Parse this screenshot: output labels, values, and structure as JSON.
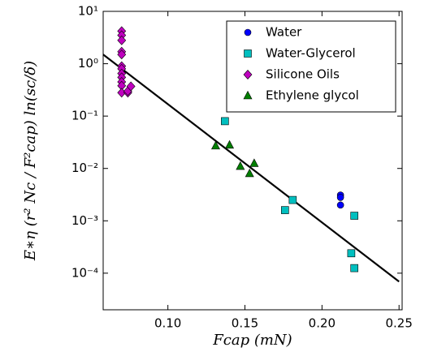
{
  "chart_data": {
    "type": "scatter",
    "x_label": "Fcap (mN)",
    "y_label": "E∗η (r² Nc / F²cap) ln(sc/δ)",
    "xlim": [
      0.058,
      0.252
    ],
    "xticks": [
      {
        "value": 0.1,
        "label": "0.10"
      },
      {
        "value": 0.15,
        "label": "0.15"
      },
      {
        "value": 0.2,
        "label": "0.20"
      },
      {
        "value": 0.25,
        "label": "0.25"
      }
    ],
    "ylim": [
      2e-05,
      10
    ],
    "yscale": "log",
    "yticks": [
      {
        "value": 10,
        "label": "10¹"
      },
      {
        "value": 1,
        "label": "10⁰"
      },
      {
        "value": 0.1,
        "label": "10⁻¹"
      },
      {
        "value": 0.01,
        "label": "10⁻²"
      },
      {
        "value": 0.001,
        "label": "10⁻³"
      },
      {
        "value": 0.0001,
        "label": "10⁻⁴"
      }
    ],
    "legend": "upper right",
    "series": [
      {
        "name": "Water",
        "color": "#0000ff",
        "marker": "circle",
        "x": [
          0.212,
          0.212,
          0.212
        ],
        "values": [
          0.0031,
          0.0028,
          0.002
        ]
      },
      {
        "name": "Water-Glycerol",
        "color": "#00bfbf",
        "marker": "square",
        "x": [
          0.137,
          0.176,
          0.181,
          0.221,
          0.219,
          0.221
        ],
        "values": [
          0.08,
          0.0016,
          0.0025,
          0.00125,
          0.00024,
          0.000125
        ]
      },
      {
        "name": "Silicone Oils",
        "color": "#bf00bf",
        "marker": "diamond",
        "x": [
          0.07,
          0.07,
          0.07,
          0.07,
          0.07,
          0.07,
          0.07,
          0.07,
          0.07,
          0.07,
          0.07,
          0.07,
          0.074,
          0.074,
          0.076
        ],
        "values": [
          4.2,
          3.5,
          2.8,
          1.7,
          1.5,
          0.9,
          0.8,
          0.65,
          0.55,
          0.45,
          0.38,
          0.28,
          0.28,
          0.3,
          0.37
        ]
      },
      {
        "name": "Ethylene glycol",
        "color": "#007f00",
        "marker": "triangle",
        "x": [
          0.131,
          0.14,
          0.147,
          0.153,
          0.156
        ],
        "values": [
          0.027,
          0.028,
          0.011,
          0.008,
          0.0125
        ]
      }
    ],
    "fit_line": {
      "color": "#000000",
      "x": [
        0.058,
        0.25
      ],
      "values": [
        1.5,
        6.9e-05
      ]
    }
  }
}
